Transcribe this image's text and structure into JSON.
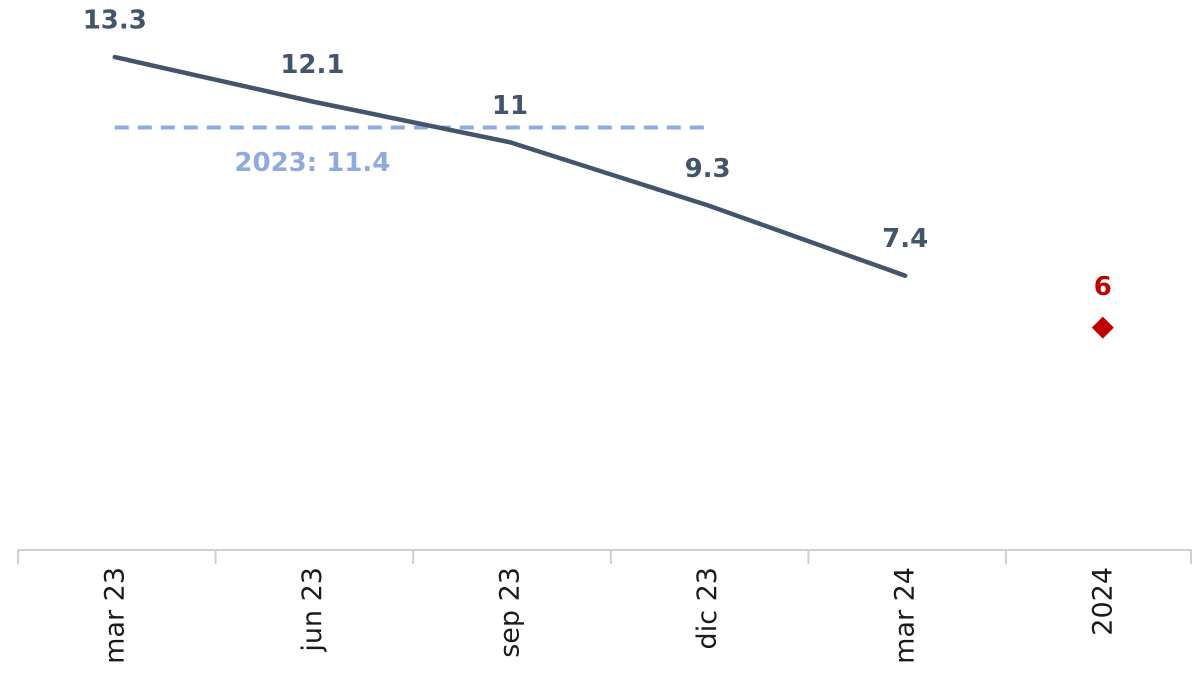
{
  "chart_data": {
    "type": "line",
    "categories": [
      "mar 23",
      "jun 23",
      "sep 23",
      "dic 23",
      "mar 24",
      "2024"
    ],
    "series": [
      {
        "color": "#44546a",
        "values": [
          13.3,
          12.1,
          11.0,
          9.3,
          7.4,
          null
        ]
      },
      {
        "type": "marker",
        "color": "#c00000",
        "values": [
          null,
          null,
          null,
          null,
          null,
          6.0
        ]
      }
    ],
    "reference_line": {
      "value": 11.4,
      "label": "2023: 11.4",
      "color": "#8faadc"
    },
    "ylim": [
      0,
      15
    ]
  }
}
